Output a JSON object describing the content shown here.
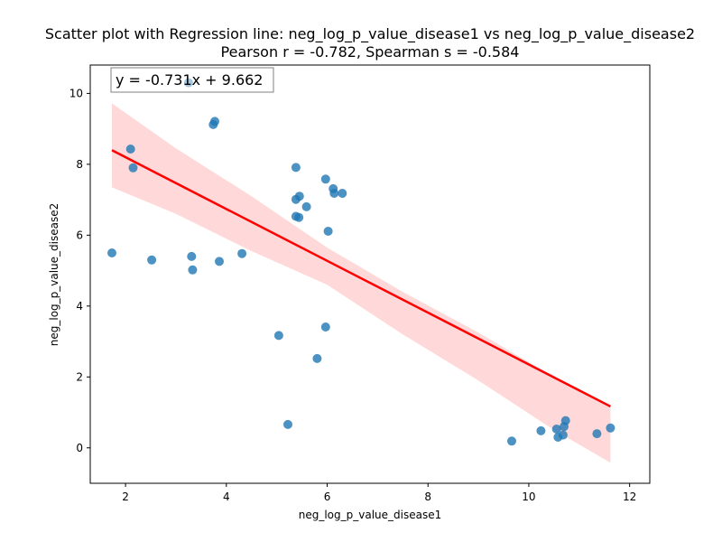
{
  "chart_data": {
    "type": "scatter",
    "title": "Scatter plot with Regression line: neg_log_p_value_disease1 vs neg_log_p_value_disease2",
    "subtitle": "Pearson r = -0.782, Spearman s = -0.584",
    "xlabel": "neg_log_p_value_disease1",
    "ylabel": "neg_log_p_value_disease2",
    "xlim": [
      1.3,
      12.4
    ],
    "ylim": [
      -1.0,
      10.8
    ],
    "xticks": [
      2,
      4,
      6,
      8,
      10,
      12
    ],
    "yticks": [
      0,
      2,
      4,
      6,
      8,
      10
    ],
    "grid": false,
    "annotation": "y = -0.731x + 9.662",
    "annotation_position": "top-left",
    "colors": {
      "points": "#1f77b4",
      "line": "#ff0000",
      "band": "#ff0000"
    },
    "regression": {
      "slope": -0.731,
      "intercept": 9.662,
      "x_range": [
        1.73,
        11.62
      ]
    },
    "confidence_band": [
      {
        "x": 1.73,
        "lower": 7.35,
        "upper": 9.72
      },
      {
        "x": 3.0,
        "lower": 6.6,
        "upper": 8.45
      },
      {
        "x": 4.5,
        "lower": 5.55,
        "upper": 7.1
      },
      {
        "x": 6.0,
        "lower": 4.6,
        "upper": 5.65
      },
      {
        "x": 7.5,
        "lower": 3.2,
        "upper": 4.4
      },
      {
        "x": 9.0,
        "lower": 1.9,
        "upper": 3.25
      },
      {
        "x": 10.5,
        "lower": 0.5,
        "upper": 2.0
      },
      {
        "x": 11.62,
        "lower": -0.42,
        "upper": 1.18
      }
    ],
    "points": [
      {
        "x": 1.73,
        "y": 5.5
      },
      {
        "x": 2.1,
        "y": 8.43
      },
      {
        "x": 2.15,
        "y": 7.9
      },
      {
        "x": 2.52,
        "y": 5.3
      },
      {
        "x": 3.25,
        "y": 10.3
      },
      {
        "x": 3.31,
        "y": 5.4
      },
      {
        "x": 3.33,
        "y": 5.02
      },
      {
        "x": 3.74,
        "y": 9.12
      },
      {
        "x": 3.77,
        "y": 9.21
      },
      {
        "x": 3.86,
        "y": 5.26
      },
      {
        "x": 4.31,
        "y": 5.48
      },
      {
        "x": 5.04,
        "y": 3.17
      },
      {
        "x": 5.22,
        "y": 0.66
      },
      {
        "x": 5.38,
        "y": 7.91
      },
      {
        "x": 5.38,
        "y": 7.01
      },
      {
        "x": 5.38,
        "y": 6.53
      },
      {
        "x": 5.44,
        "y": 6.5
      },
      {
        "x": 5.45,
        "y": 7.1
      },
      {
        "x": 5.59,
        "y": 6.8
      },
      {
        "x": 5.8,
        "y": 2.52
      },
      {
        "x": 5.97,
        "y": 7.58
      },
      {
        "x": 5.97,
        "y": 3.41
      },
      {
        "x": 6.02,
        "y": 6.11
      },
      {
        "x": 6.12,
        "y": 7.31
      },
      {
        "x": 6.14,
        "y": 7.18
      },
      {
        "x": 6.3,
        "y": 7.18
      },
      {
        "x": 9.66,
        "y": 0.19
      },
      {
        "x": 10.24,
        "y": 0.48
      },
      {
        "x": 10.55,
        "y": 0.53
      },
      {
        "x": 10.58,
        "y": 0.3
      },
      {
        "x": 10.68,
        "y": 0.36
      },
      {
        "x": 10.7,
        "y": 0.6
      },
      {
        "x": 10.73,
        "y": 0.77
      },
      {
        "x": 11.35,
        "y": 0.4
      },
      {
        "x": 11.62,
        "y": 0.56
      }
    ]
  }
}
